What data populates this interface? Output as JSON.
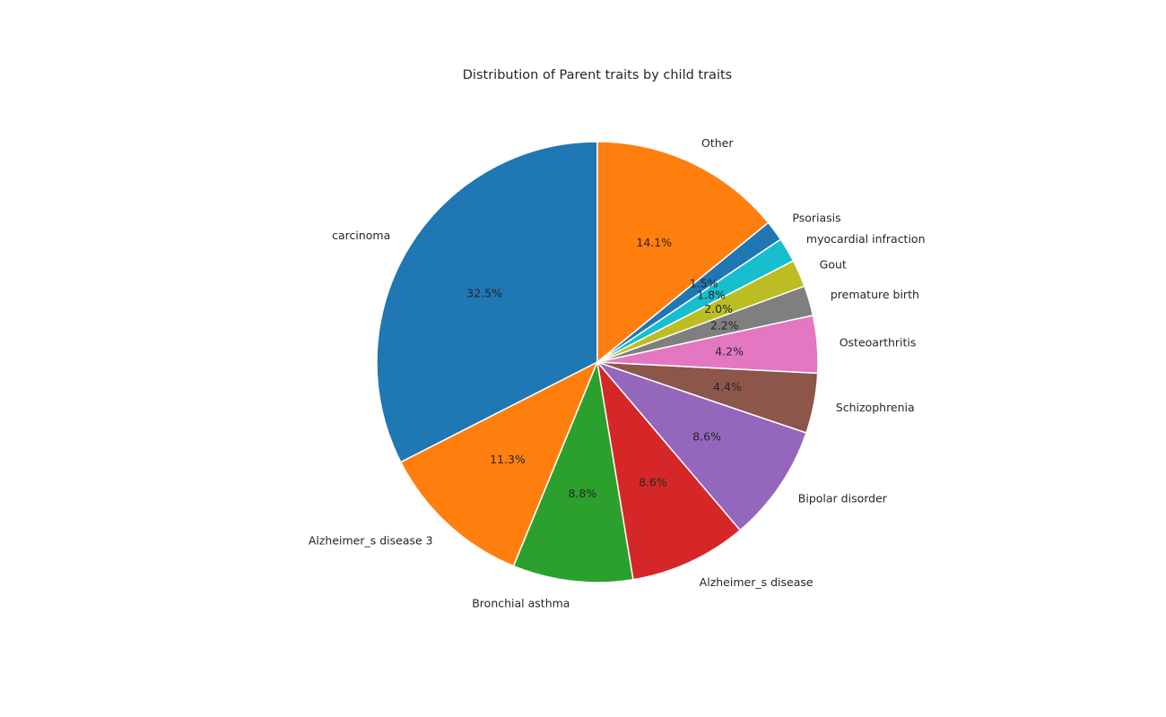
{
  "chart_data": {
    "type": "pie",
    "title": "Distribution of Parent traits by child traits",
    "start_angle_deg": 90,
    "direction": "counterclockwise",
    "categories": [
      "carcinoma",
      "Alzheimer_s disease 3",
      "Bronchial asthma",
      "Alzheimer_s disease",
      "Bipolar disorder",
      "Schizophrenia",
      "Osteoarthritis",
      "premature birth",
      "Gout",
      "myocardial infraction",
      "Psoriasis",
      "Other"
    ],
    "values": [
      32.5,
      11.3,
      8.8,
      8.6,
      8.6,
      4.4,
      4.2,
      2.2,
      2.0,
      1.8,
      1.5,
      14.1
    ],
    "value_labels": [
      "32.5%",
      "11.3%",
      "8.8%",
      "8.6%",
      "8.6%",
      "4.4%",
      "4.2%",
      "2.2%",
      "2.0%",
      "1.8%",
      "1.5%",
      "14.1%"
    ],
    "colors": [
      "#1f77b4",
      "#ff7f0e",
      "#2ca02c",
      "#d62728",
      "#9467bd",
      "#8c564b",
      "#e377c2",
      "#7f7f7f",
      "#bcbd22",
      "#17becf",
      "#1f77b4",
      "#ff7f0e"
    ]
  }
}
